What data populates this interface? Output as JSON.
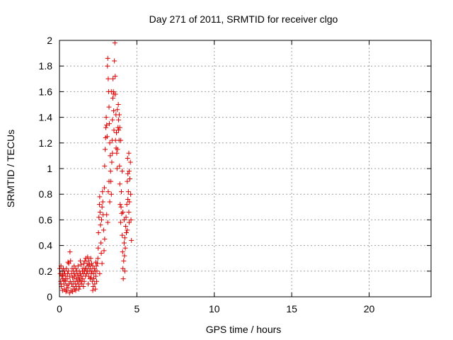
{
  "chart_data": {
    "type": "scatter",
    "title": "Day 271 of 2011, SRMTID for receiver clgo",
    "xlabel": "GPS time / hours",
    "ylabel": "SRMTID / TECUs",
    "xlim": [
      0,
      24
    ],
    "ylim": [
      0,
      2
    ],
    "x_ticks": [
      0,
      5,
      10,
      15,
      20
    ],
    "y_ticks": [
      0,
      0.2,
      0.4,
      0.6,
      0.8,
      1,
      1.2,
      1.4,
      1.6,
      1.8,
      2
    ],
    "grid": true,
    "marker": "plus",
    "series": [
      {
        "color": "#dd0000",
        "points": [
          [
            0.02,
            0.22
          ],
          [
            0.05,
            0.18
          ],
          [
            0.08,
            0.12
          ],
          [
            0.1,
            0.24
          ],
          [
            0.12,
            0.08
          ],
          [
            0.15,
            0.16
          ],
          [
            0.18,
            0.2
          ],
          [
            0.2,
            0.05
          ],
          [
            0.22,
            0.14
          ],
          [
            0.25,
            0.22
          ],
          [
            0.28,
            0.1
          ],
          [
            0.3,
            0.18
          ],
          [
            0.32,
            0.06
          ],
          [
            0.35,
            0.2
          ],
          [
            0.38,
            0.12
          ],
          [
            0.4,
            0.16
          ],
          [
            0.42,
            0.04
          ],
          [
            0.45,
            0.22
          ],
          [
            0.48,
            0.09
          ],
          [
            0.5,
            0.14
          ],
          [
            0.52,
            0.18
          ],
          [
            0.55,
            0.07
          ],
          [
            0.58,
            0.2
          ],
          [
            0.6,
            0.26
          ],
          [
            0.62,
            0.1
          ],
          [
            0.65,
            0.16
          ],
          [
            0.68,
            0.35
          ],
          [
            0.7,
            0.12
          ],
          [
            0.72,
            0.28
          ],
          [
            0.75,
            0.05
          ],
          [
            0.78,
            0.18
          ],
          [
            0.8,
            0.1
          ],
          [
            0.82,
            0.22
          ],
          [
            0.85,
            0.15
          ],
          [
            0.88,
            0.08
          ],
          [
            0.9,
            0.2
          ],
          [
            0.92,
            0.12
          ],
          [
            0.95,
            0.16
          ],
          [
            0.98,
            0.06
          ],
          [
            1.0,
            0.18
          ],
          [
            1.02,
            0.1
          ],
          [
            1.05,
            0.22
          ],
          [
            1.08,
            0.14
          ],
          [
            1.1,
            0.08
          ],
          [
            1.12,
            0.2
          ],
          [
            1.15,
            0.12
          ],
          [
            1.18,
            0.17
          ],
          [
            1.2,
            0.24
          ],
          [
            1.22,
            0.1
          ],
          [
            1.25,
            0.15
          ],
          [
            1.28,
            0.2
          ],
          [
            1.3,
            0.13
          ],
          [
            1.32,
            0.08
          ],
          [
            1.35,
            0.18
          ],
          [
            1.38,
            0.12
          ],
          [
            1.4,
            0.25
          ],
          [
            1.42,
            0.16
          ],
          [
            1.45,
            0.1
          ],
          [
            1.48,
            0.2
          ],
          [
            1.5,
            0.14
          ],
          [
            1.52,
            0.22
          ],
          [
            1.55,
            0.18
          ],
          [
            1.58,
            0.26
          ],
          [
            1.6,
            0.12
          ],
          [
            1.62,
            0.2
          ],
          [
            1.65,
            0.28
          ],
          [
            1.68,
            0.16
          ],
          [
            1.7,
            0.3
          ],
          [
            1.72,
            0.22
          ],
          [
            1.75,
            0.18
          ],
          [
            1.78,
            0.26
          ],
          [
            1.8,
            0.2
          ],
          [
            1.82,
            0.31
          ],
          [
            1.85,
            0.24
          ],
          [
            1.88,
            0.16
          ],
          [
            1.9,
            0.28
          ],
          [
            1.92,
            0.2
          ],
          [
            1.95,
            0.25
          ],
          [
            1.98,
            0.14
          ],
          [
            2.0,
            0.22
          ],
          [
            2.02,
            0.3
          ],
          [
            2.05,
            0.18
          ],
          [
            2.08,
            0.26
          ],
          [
            2.1,
            0.2
          ],
          [
            2.12,
            0.12
          ],
          [
            2.15,
            0.24
          ],
          [
            2.18,
            0.08
          ],
          [
            2.2,
            0.18
          ],
          [
            2.22,
            0.14
          ],
          [
            2.25,
            0.22
          ],
          [
            2.28,
            0.1
          ],
          [
            2.3,
            0.2
          ],
          [
            2.32,
            0.06
          ],
          [
            2.35,
            0.16
          ],
          [
            2.38,
            0.24
          ],
          [
            2.4,
            0.12
          ],
          [
            2.42,
            0.2
          ],
          [
            2.45,
            0.26
          ],
          [
            2.48,
            0.3
          ],
          [
            2.5,
            0.38
          ],
          [
            2.52,
            0.5
          ],
          [
            2.55,
            0.62
          ],
          [
            2.58,
            0.72
          ],
          [
            2.6,
            0.78
          ],
          [
            2.62,
            0.66
          ],
          [
            2.65,
            0.56
          ],
          [
            2.68,
            0.42
          ],
          [
            2.7,
            0.34
          ],
          [
            2.72,
            0.6
          ],
          [
            2.75,
            0.7
          ],
          [
            2.78,
            0.82
          ],
          [
            2.8,
            0.74
          ],
          [
            2.82,
            0.64
          ],
          [
            2.85,
            0.52
          ],
          [
            2.88,
            0.36
          ],
          [
            2.9,
            0.85
          ],
          [
            2.92,
            1.02
          ],
          [
            2.95,
            1.15
          ],
          [
            2.98,
            1.24
          ],
          [
            3.0,
            1.32
          ],
          [
            3.02,
            1.4
          ],
          [
            3.05,
            1.34
          ],
          [
            3.08,
            1.25
          ],
          [
            3.1,
            1.8
          ],
          [
            3.12,
            1.86
          ],
          [
            3.15,
            1.7
          ],
          [
            3.18,
            1.6
          ],
          [
            3.2,
            1.48
          ],
          [
            3.22,
            1.35
          ],
          [
            3.25,
            1.2
          ],
          [
            3.28,
            1.1
          ],
          [
            3.3,
            0.98
          ],
          [
            3.32,
            0.9
          ],
          [
            3.35,
            0.8
          ],
          [
            3.38,
            1.05
          ],
          [
            3.4,
            1.22
          ],
          [
            3.42,
            1.38
          ],
          [
            3.45,
            1.55
          ],
          [
            3.48,
            1.6
          ],
          [
            3.5,
            1.45
          ],
          [
            3.52,
            1.3
          ],
          [
            3.55,
            1.84
          ],
          [
            3.58,
            1.98
          ],
          [
            3.6,
            1.72
          ],
          [
            3.62,
            1.58
          ],
          [
            3.65,
            1.42
          ],
          [
            3.68,
            1.28
          ],
          [
            3.7,
            1.12
          ],
          [
            3.72,
            1.0
          ],
          [
            3.75,
            1.15
          ],
          [
            3.78,
            1.32
          ],
          [
            3.8,
            1.5
          ],
          [
            3.82,
            1.38
          ],
          [
            3.85,
            1.22
          ],
          [
            3.88,
            1.02
          ],
          [
            3.9,
            0.88
          ],
          [
            3.92,
            0.72
          ],
          [
            3.95,
            0.58
          ],
          [
            3.98,
            0.7
          ],
          [
            4.0,
            0.82
          ],
          [
            4.02,
            0.65
          ],
          [
            4.05,
            0.48
          ],
          [
            4.08,
            0.35
          ],
          [
            4.1,
            0.22
          ],
          [
            4.12,
            0.14
          ],
          [
            4.15,
            0.28
          ],
          [
            4.18,
            0.42
          ],
          [
            4.2,
            0.32
          ],
          [
            4.22,
            0.2
          ],
          [
            4.25,
            0.38
          ],
          [
            4.28,
            0.55
          ],
          [
            4.3,
            0.62
          ],
          [
            4.32,
            0.5
          ],
          [
            4.35,
            0.72
          ],
          [
            4.38,
            0.9
          ],
          [
            4.4,
            1.08
          ],
          [
            4.42,
            0.96
          ],
          [
            4.45,
            0.82
          ],
          [
            4.48,
            0.66
          ],
          [
            4.5,
            0.58
          ],
          [
            4.52,
            0.74
          ],
          [
            4.55,
            0.92
          ],
          [
            4.58,
            1.05
          ],
          [
            4.6,
            0.8
          ],
          [
            4.62,
            0.6
          ],
          [
            4.65,
            0.44
          ],
          [
            4.5,
            0.98
          ],
          [
            4.48,
            1.12
          ],
          [
            4.42,
            0.76
          ],
          [
            4.38,
            0.52
          ],
          [
            3.15,
            0.82
          ],
          [
            3.2,
            0.9
          ],
          [
            3.25,
            0.74
          ],
          [
            3.42,
            1.12
          ],
          [
            3.62,
            1.22
          ],
          [
            3.66,
            1.16
          ],
          [
            3.86,
            1.42
          ],
          [
            3.9,
            1.32
          ],
          [
            4.05,
            0.98
          ],
          [
            4.18,
            0.6
          ],
          [
            0.1,
            0.1
          ],
          [
            0.3,
            0.13
          ],
          [
            0.45,
            0.05
          ],
          [
            0.65,
            0.03
          ],
          [
            0.85,
            0.04
          ],
          [
            1.05,
            0.05
          ],
          [
            1.25,
            0.06
          ],
          [
            1.55,
            0.08
          ],
          [
            1.85,
            0.1
          ],
          [
            2.15,
            0.05
          ],
          [
            0.2,
            0.17
          ],
          [
            0.55,
            0.27
          ],
          [
            0.95,
            0.24
          ],
          [
            1.35,
            0.28
          ],
          [
            1.65,
            0.22
          ],
          [
            2.05,
            0.15
          ],
          [
            2.35,
            0.27
          ],
          [
            2.6,
            0.18
          ],
          [
            2.75,
            0.26
          ],
          [
            2.92,
            0.45
          ],
          [
            3.05,
            0.64
          ],
          [
            3.12,
            0.58
          ],
          [
            3.35,
            1.6
          ],
          [
            3.46,
            1.7
          ],
          [
            3.52,
            1.58
          ],
          [
            3.74,
            1.46
          ],
          [
            3.82,
            1.3
          ],
          [
            3.96,
            1.22
          ],
          [
            4.1,
            0.66
          ],
          [
            4.22,
            0.46
          ]
        ]
      }
    ]
  }
}
